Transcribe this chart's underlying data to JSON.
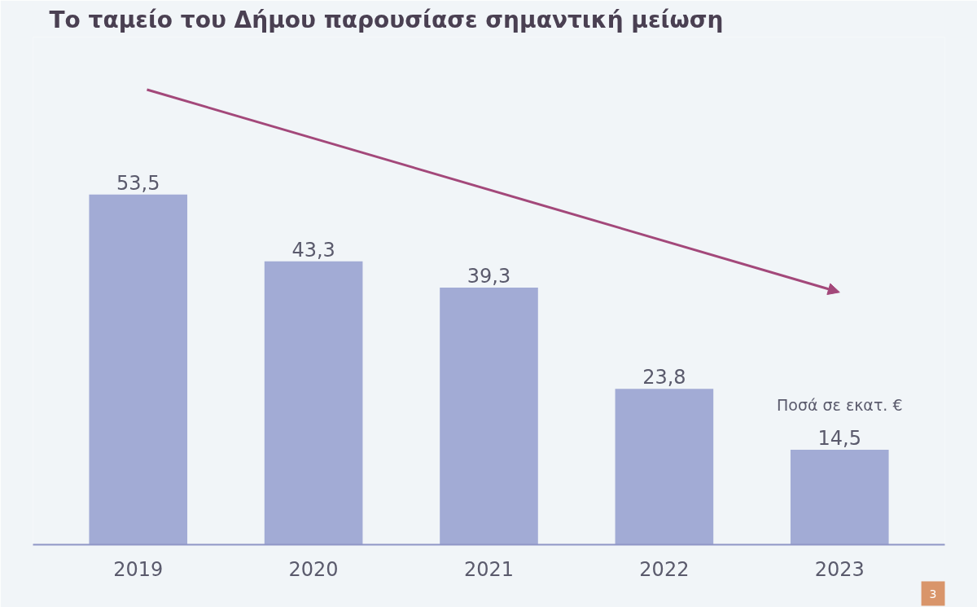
{
  "chart_data": {
    "type": "bar",
    "title": "Το ταμείο του Δήμου παρουσίασε σημαντική μείωση",
    "categories": [
      "2019",
      "2020",
      "2021",
      "2022",
      "2023"
    ],
    "values": [
      53.5,
      43.3,
      39.3,
      23.8,
      14.5
    ],
    "value_labels": [
      "53,5",
      "43,3",
      "39,3",
      "23,8",
      "14,5"
    ],
    "color": "#a2abd5",
    "tick_labels": "x",
    "annotations": [
      "Ποσά σε εκατ. €",
      "3"
    ]
  }
}
